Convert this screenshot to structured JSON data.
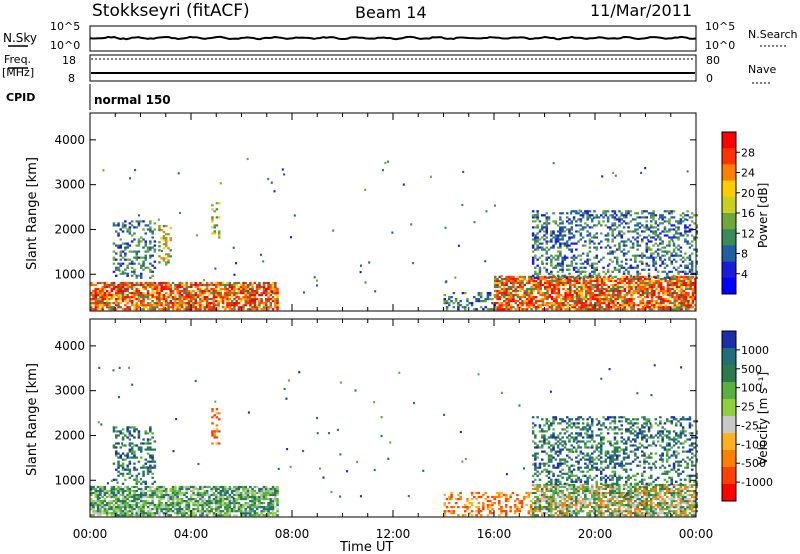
{
  "header": {
    "station": "Stokkseyri (fitACF)",
    "beam": "Beam 14",
    "date": "11/Mar/2011"
  },
  "status_panels": {
    "nsky_label": "N.Sky",
    "nsearch_label": "N.Search",
    "nsky_ticks": [
      "10^5",
      "10^0"
    ],
    "nsearch_ticks": [
      "10^5",
      "10^0"
    ],
    "freq_label_1": "Freq.",
    "freq_label_2": "[MHz]",
    "freq_ticks": [
      "18",
      "8"
    ],
    "nave_label": "Nave",
    "nave_ticks": [
      "80",
      "0"
    ],
    "cpid_label": "CPID",
    "cpid_value": "normal 150"
  },
  "colorbars": {
    "power": {
      "label": "Power [dB]",
      "ticks": [
        "28",
        "24",
        "20",
        "16",
        "12",
        "8",
        "4"
      ],
      "colors": [
        "#ff0000",
        "#ff3300",
        "#ff7f00",
        "#ffcc00",
        "#c8d020",
        "#6ea83c",
        "#3c8a58",
        "#1f5fa0",
        "#1a1ad8",
        "#0000ff"
      ]
    },
    "velocity": {
      "label": "Velocity [m s⁻¹]",
      "ticks": [
        "1000",
        "500",
        "100",
        "25",
        "-25",
        "-100",
        "-500",
        "-1000"
      ],
      "colors": [
        "#1a2fa8",
        "#1f6e78",
        "#2e7a4a",
        "#58b040",
        "#8fd040",
        "#c8c8c8",
        "#ffb020",
        "#ff8000",
        "#ff4000",
        "#ff0000"
      ]
    }
  },
  "chart_data": [
    {
      "type": "heatmap",
      "name": "power",
      "xlabel": "",
      "ylabel": "Slant Range [km]",
      "x_ticks": [
        "00:00",
        "04:00",
        "08:00",
        "12:00",
        "16:00",
        "20:00",
        "00:00"
      ],
      "xlim_hours": [
        0,
        24
      ],
      "y_ticks": [
        1000,
        2000,
        3000,
        4000
      ],
      "ylim_km": [
        180,
        4600
      ],
      "regions": [
        {
          "t0": 0.0,
          "t1": 7.4,
          "r0": 200,
          "r1": 800,
          "level": "high"
        },
        {
          "t0": 0.9,
          "t1": 2.6,
          "r0": 900,
          "r1": 2200,
          "level": "low"
        },
        {
          "t0": 2.7,
          "t1": 3.2,
          "r0": 1200,
          "r1": 2100,
          "level": "mid"
        },
        {
          "t0": 4.8,
          "t1": 5.1,
          "r0": 1800,
          "r1": 2600,
          "level": "mid"
        },
        {
          "t0": 16.0,
          "t1": 24.0,
          "r0": 200,
          "r1": 950,
          "level": "high"
        },
        {
          "t0": 14.0,
          "t1": 16.0,
          "r0": 200,
          "r1": 600,
          "level": "low"
        },
        {
          "t0": 17.5,
          "t1": 24.0,
          "r0": 900,
          "r1": 2400,
          "level": "low"
        }
      ]
    },
    {
      "type": "heatmap",
      "name": "velocity",
      "xlabel": "Time UT",
      "ylabel": "Slant Range [km]",
      "x_ticks": [
        "00:00",
        "04:00",
        "08:00",
        "12:00",
        "16:00",
        "20:00",
        "00:00"
      ],
      "xlim_hours": [
        0,
        24
      ],
      "y_ticks": [
        1000,
        2000,
        3000,
        4000
      ],
      "ylim_km": [
        180,
        4600
      ],
      "regions": [
        {
          "t0": 0.0,
          "t1": 7.4,
          "r0": 200,
          "r1": 850,
          "level": "green"
        },
        {
          "t0": 0.9,
          "t1": 2.6,
          "r0": 900,
          "r1": 2200,
          "level": "teal"
        },
        {
          "t0": 4.8,
          "t1": 5.1,
          "r0": 1800,
          "r1": 2600,
          "level": "orange"
        },
        {
          "t0": 14.0,
          "t1": 17.5,
          "r0": 200,
          "r1": 700,
          "level": "orange"
        },
        {
          "t0": 17.5,
          "t1": 24.0,
          "r0": 200,
          "r1": 900,
          "level": "grey"
        },
        {
          "t0": 17.5,
          "t1": 24.0,
          "r0": 900,
          "r1": 2400,
          "level": "teal"
        }
      ]
    }
  ]
}
